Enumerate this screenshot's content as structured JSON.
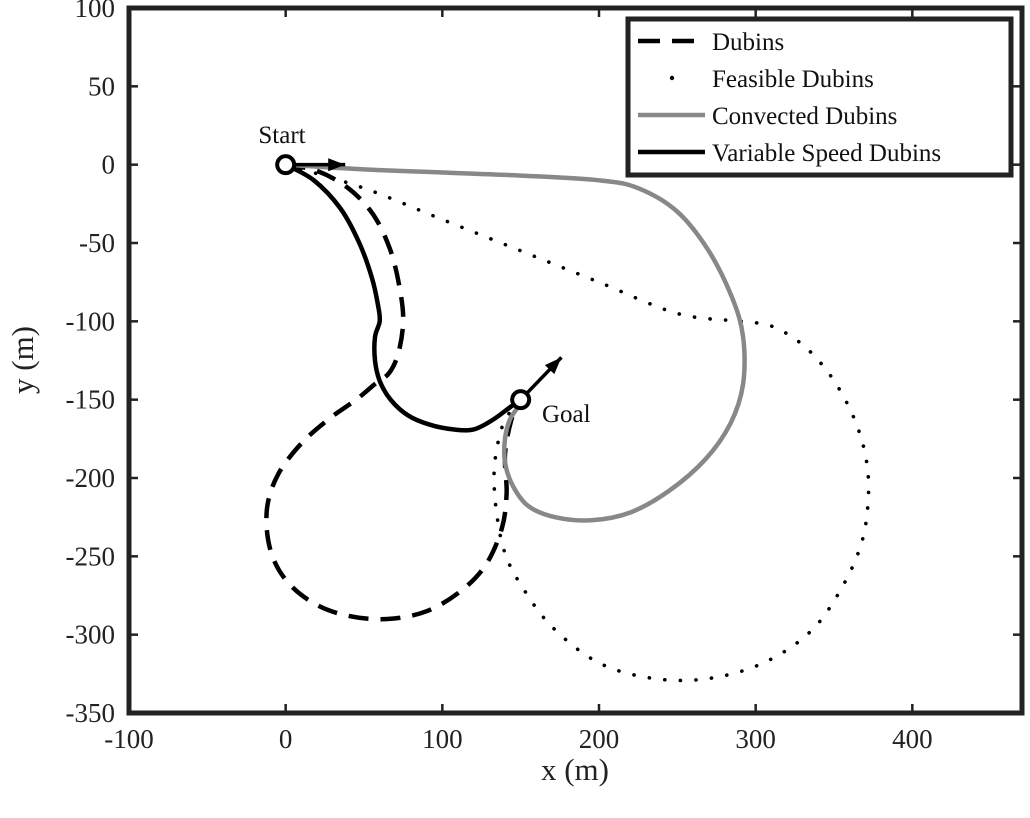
{
  "chart_data": {
    "type": "line",
    "title": "",
    "xlabel": "x (m)",
    "ylabel": "y (m)",
    "xlim": [
      -100,
      470
    ],
    "ylim": [
      -350,
      100
    ],
    "xticks": [
      -100,
      0,
      100,
      200,
      300,
      400
    ],
    "yticks": [
      100,
      50,
      0,
      -50,
      -100,
      -150,
      -200,
      -250,
      -300,
      -350
    ],
    "xtick_labels": [
      "-100",
      "0",
      "100",
      "200",
      "300",
      "400"
    ],
    "ytick_labels": [
      "100",
      "50",
      "0",
      "-50",
      "-100",
      "-150",
      "-200",
      "-250",
      "-300",
      "-350"
    ],
    "grid": false,
    "legend_position": "top-right",
    "series": [
      {
        "name": "Dubins",
        "style": "dashed",
        "color": "#000000",
        "x": [
          0,
          20,
          40,
          56,
          67,
          73,
          75,
          72,
          66,
          57,
          45,
          28,
          10,
          -5,
          -12,
          -10,
          0,
          18,
          40,
          65,
          90,
          112,
          128,
          138,
          141,
          140,
          144,
          150
        ],
        "y": [
          0,
          -4,
          -15,
          -32,
          -55,
          -80,
          -100,
          -120,
          -133,
          -140,
          -150,
          -162,
          -178,
          -198,
          -220,
          -245,
          -265,
          -280,
          -288,
          -290,
          -285,
          -272,
          -255,
          -232,
          -210,
          -185,
          -163,
          -150
        ]
      },
      {
        "name": "Feasible Dubins",
        "style": "dotted",
        "color": "#000000",
        "x": [
          0,
          50,
          100,
          150,
          200,
          250,
          290,
          310,
          330,
          348,
          362,
          370,
          372,
          368,
          355,
          335,
          305,
          270,
          235,
          200,
          170,
          150,
          140,
          135,
          133,
          135,
          140,
          150
        ],
        "y": [
          0,
          -15,
          -35,
          -55,
          -75,
          -95,
          -100,
          -103,
          -115,
          -135,
          -160,
          -185,
          -210,
          -240,
          -270,
          -298,
          -318,
          -328,
          -328,
          -318,
          -295,
          -268,
          -248,
          -225,
          -200,
          -180,
          -163,
          -150
        ]
      },
      {
        "name": "Convected Dubins",
        "style": "solid",
        "color": "#888888",
        "x": [
          0,
          50,
          100,
          150,
          200,
          225,
          250,
          270,
          285,
          292,
          292,
          284,
          268,
          245,
          220,
          195,
          172,
          155,
          145,
          140,
          140,
          143,
          148,
          150
        ],
        "y": [
          0,
          -3,
          -5,
          -7,
          -10,
          -15,
          -30,
          -55,
          -85,
          -110,
          -140,
          -165,
          -188,
          -208,
          -222,
          -227,
          -225,
          -218,
          -205,
          -190,
          -175,
          -163,
          -155,
          -150
        ]
      },
      {
        "name": "Variable Speed Dubins",
        "style": "solid",
        "color": "#000000",
        "x": [
          0,
          18,
          35,
          47,
          55,
          59,
          60,
          57,
          57,
          60,
          67,
          78,
          92,
          107,
          120,
          132,
          143,
          150
        ],
        "y": [
          0,
          -10,
          -28,
          -50,
          -72,
          -90,
          -100,
          -110,
          -125,
          -138,
          -150,
          -160,
          -166,
          -169,
          -169,
          -163,
          -155,
          -150
        ]
      }
    ],
    "annotations": [
      {
        "text": "Start",
        "x": 0,
        "y": 0
      },
      {
        "text": "Goal",
        "x": 150,
        "y": -150
      }
    ],
    "arrows": [
      {
        "from": [
          0,
          0
        ],
        "to": [
          38,
          0
        ]
      },
      {
        "from": [
          150,
          -150
        ],
        "to": [
          176,
          -123
        ]
      }
    ]
  }
}
